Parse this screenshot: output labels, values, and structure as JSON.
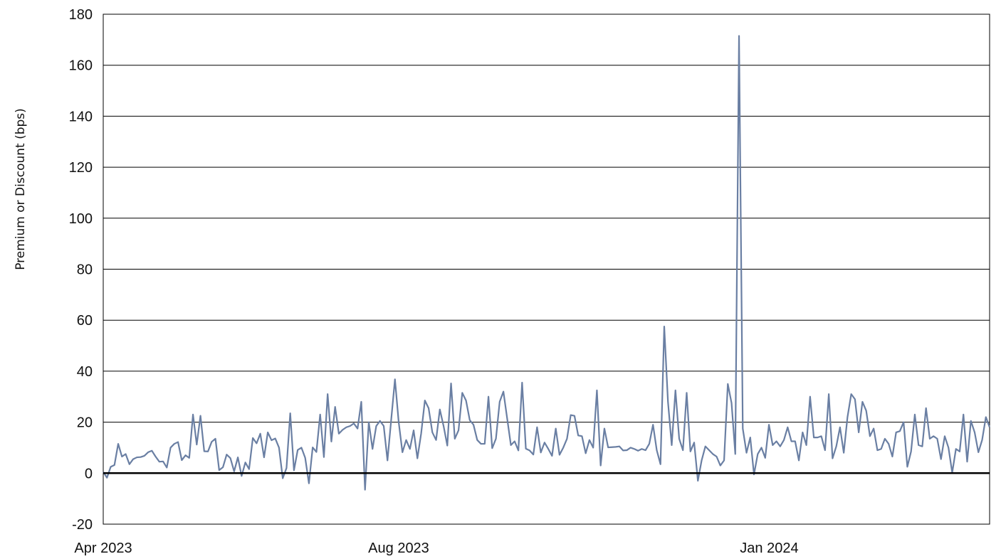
{
  "chart_data": {
    "type": "line",
    "title": "",
    "xlabel": "",
    "ylabel": "Premium or Discount (bps)",
    "ylim": [
      -20,
      180
    ],
    "yticks": [
      -20,
      0,
      20,
      40,
      60,
      80,
      100,
      120,
      140,
      160,
      180
    ],
    "xlim": [
      "2023-04-01",
      "2024-04-01"
    ],
    "xticks": [
      {
        "date": "2023-04-01",
        "label": "Apr 2023"
      },
      {
        "date": "2023-08-01",
        "label": "Aug 2023"
      },
      {
        "date": "2024-01-01",
        "label": "Jan 2024"
      }
    ],
    "grid": {
      "horizontal": true,
      "vertical": false
    },
    "zero_line": true,
    "line_color": "#6a7fa3",
    "series": [
      {
        "values": [
          0.5,
          -1.8,
          2.5,
          3.2,
          11.5,
          6.5,
          7.5,
          3.5,
          5.5,
          6.2,
          6.3,
          6.8,
          8.2,
          8.8,
          6.5,
          4.5,
          4.6,
          2.2,
          10,
          11.5,
          12.2,
          5.1,
          7,
          6,
          23,
          11.2,
          22.5,
          8.6,
          8.5,
          12.3,
          13.5,
          1.2,
          2.3,
          7.3,
          5.9,
          0.7,
          6.2,
          -1.1,
          4.2,
          1.6,
          13.8,
          11.7,
          15.5,
          6.2,
          16,
          12.9,
          13.6,
          10,
          -2,
          2,
          23.5,
          1.1,
          9.1,
          10,
          6,
          -4,
          10.1,
          8.3,
          23,
          6.3,
          31,
          12.4,
          26,
          15.5,
          17,
          18,
          18.5,
          19.5,
          17.5,
          28,
          -6.5,
          20,
          9.5,
          18.5,
          20.5,
          18.5,
          5,
          21,
          36.8,
          20,
          8.2,
          13,
          9.5,
          16.8,
          5.8,
          15.5,
          28.5,
          25.5,
          16,
          13,
          25,
          18.5,
          10.8,
          35.2,
          13.5,
          16.8,
          31.5,
          28.5,
          20.8,
          19,
          13,
          11.5,
          11.5,
          30,
          9.8,
          13.5,
          28,
          32,
          21.5,
          11,
          12.5,
          8.9,
          35.5,
          9.6,
          8.9,
          7.3,
          18,
          8.1,
          12,
          9.5,
          6.8,
          17.5,
          7.2,
          10,
          13.5,
          22.8,
          22.5,
          14.8,
          14.5,
          7.8,
          13,
          10,
          32.5,
          3,
          17.5,
          10.1,
          10.2,
          10.3,
          10.5,
          8.9,
          9,
          10,
          9.5,
          8.8,
          9.5,
          9,
          11.5,
          19,
          9,
          3.5,
          57.5,
          28,
          11,
          32.5,
          13.5,
          9,
          31.5,
          8.5,
          12,
          -3,
          5,
          10.5,
          9,
          7.5,
          6.5,
          3,
          5,
          35,
          27.5,
          7.5,
          171.5,
          17.5,
          8,
          14,
          -0.5,
          7.5,
          10,
          6,
          19,
          11,
          12.5,
          10.5,
          13,
          18,
          12.5,
          12.5,
          5,
          16,
          11,
          30,
          14,
          14,
          14.5,
          9,
          31,
          5.8,
          10.5,
          18,
          8,
          22,
          31,
          29,
          16,
          28,
          24.5,
          14.5,
          17.5,
          9,
          9.5,
          13.5,
          11.5,
          6.5,
          16,
          16.5,
          20,
          2.5,
          8.5,
          23,
          11,
          10.5,
          25.5,
          13.5,
          14.5,
          13.5,
          5.5,
          14.5,
          10,
          0.2,
          9.5,
          8.5,
          23,
          4.5,
          20.5,
          16,
          8.2,
          13,
          22,
          18
        ]
      }
    ]
  }
}
